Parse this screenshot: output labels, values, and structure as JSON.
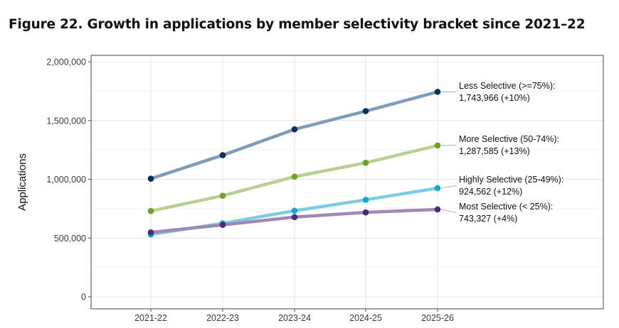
{
  "title": "Figure 22. Growth in applications by member selectivity bracket since 2021–22",
  "chart_data": {
    "type": "line",
    "x": [
      "2021-22",
      "2022-23",
      "2023-24",
      "2024-25",
      "2025-26"
    ],
    "xlabel": "",
    "ylabel": "Applications",
    "ylim": [
      0,
      2000000
    ],
    "yticks": [
      0,
      500000,
      1000000,
      1500000,
      2000000
    ],
    "ytick_labels": [
      "0",
      "500,000",
      "1,000,000",
      "1,500,000",
      "2,000,000"
    ],
    "grid": true,
    "series": [
      {
        "name": "Less Selective (>=75%)",
        "values": [
          1005000,
          1205000,
          1425000,
          1580000,
          1743966
        ],
        "line_color": "#7f9cba",
        "point_color": "#0b2f5f",
        "label_line1": "Less Selective (>=75%):",
        "label_line2": "1,743,966 (+10%)"
      },
      {
        "name": "More Selective (50-74%)",
        "values": [
          730000,
          860000,
          1022000,
          1140000,
          1287585
        ],
        "line_color": "#b9d08e",
        "point_color": "#74a028",
        "label_line1": "More Selective (50-74%):",
        "label_line2": "1,287,585 (+13%)"
      },
      {
        "name": "Highly Selective (25-49%)",
        "values": [
          530000,
          625000,
          732000,
          825000,
          924562
        ],
        "line_color": "#7ccde4",
        "point_color": "#1aa4cf",
        "label_line1": "Highly Selective (25-49%):",
        "label_line2": "924,562 (+12%)"
      },
      {
        "name": "Most Selective (< 25%)",
        "values": [
          548000,
          612000,
          678000,
          718000,
          743327
        ],
        "line_color": "#9e89b2",
        "point_color": "#4b2a78",
        "label_line1": "Most Selective (< 25%):",
        "label_line2": "743,327 (+4%)"
      }
    ]
  }
}
